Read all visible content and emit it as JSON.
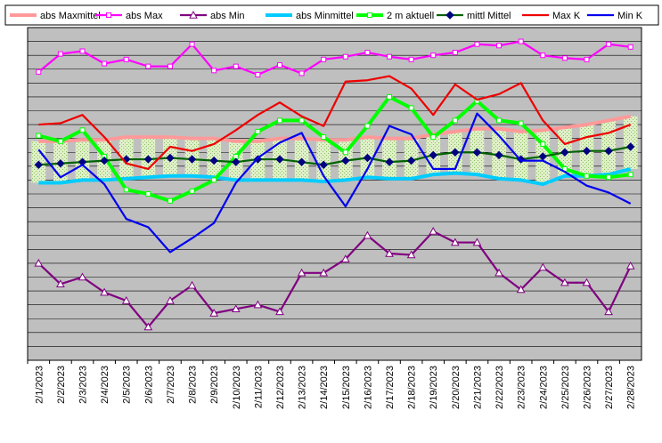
{
  "chart_data": {
    "type": "line",
    "title": "",
    "xlabel": "",
    "ylabel": "",
    "grid": true,
    "legend_position": "top",
    "x": [
      "2/1/2023",
      "2/2/2023",
      "2/3/2023",
      "2/4/2023",
      "2/5/2023",
      "2/6/2023",
      "2/7/2023",
      "2/8/2023",
      "2/9/2023",
      "2/10/2023",
      "2/11/2023",
      "2/12/2023",
      "2/13/2023",
      "2/14/2023",
      "2/15/2023",
      "2/16/2023",
      "2/17/2023",
      "2/18/2023",
      "2/19/2023",
      "2/20/2023",
      "2/21/2023",
      "2/22/2023",
      "2/23/2023",
      "2/24/2023",
      "2/25/2023",
      "2/26/2023",
      "2/27/2023",
      "2/28/2023"
    ],
    "ylim": [
      0,
      24
    ],
    "series": [
      {
        "name": "abs Maxmittel",
        "color": "#ff9999",
        "style": "thick-line",
        "values": [
          15.8,
          15.8,
          15.9,
          15.9,
          16.1,
          16.1,
          16.1,
          16.0,
          16.0,
          15.8,
          15.8,
          16.0,
          16.0,
          15.9,
          15.9,
          16.1,
          16.0,
          16.0,
          16.3,
          16.5,
          16.7,
          16.7,
          16.5,
          16.6,
          16.8,
          17.0,
          17.3,
          17.6
        ]
      },
      {
        "name": "abs Max",
        "color": "#ff00ff",
        "style": "line-square",
        "values": [
          20.8,
          22.1,
          22.3,
          21.4,
          21.7,
          21.2,
          21.2,
          22.8,
          20.9,
          21.2,
          20.6,
          21.3,
          20.7,
          21.7,
          21.9,
          22.2,
          21.9,
          21.7,
          22.0,
          22.2,
          22.8,
          22.7,
          23.0,
          22.0,
          21.8,
          21.7,
          22.8,
          22.6
        ]
      },
      {
        "name": "abs Min",
        "color": "#800080",
        "style": "line-triangle",
        "values": [
          7.0,
          5.5,
          6.0,
          4.9,
          4.3,
          2.4,
          4.3,
          5.4,
          3.4,
          3.7,
          4.0,
          3.5,
          6.3,
          6.3,
          7.3,
          9.0,
          7.7,
          7.6,
          9.3,
          8.5,
          8.5,
          6.3,
          5.1,
          6.7,
          5.6,
          5.6,
          3.5,
          6.8
        ]
      },
      {
        "name": "abs Minmittel",
        "color": "#00ccff",
        "style": "thick-line",
        "values": [
          12.8,
          12.8,
          13.0,
          13.0,
          13.1,
          13.2,
          13.3,
          13.3,
          13.2,
          13.0,
          13.0,
          13.0,
          13.0,
          12.9,
          13.0,
          13.2,
          13.1,
          13.1,
          13.4,
          13.5,
          13.4,
          13.1,
          13.0,
          12.7,
          13.3,
          13.3,
          13.4,
          13.8
        ]
      },
      {
        "name": "2 m aktuell",
        "color": "#00ff00",
        "style": "thick-line-square",
        "values": [
          16.2,
          15.8,
          16.6,
          14.7,
          12.3,
          12.0,
          11.5,
          12.2,
          13.0,
          14.7,
          16.5,
          17.3,
          17.3,
          16.1,
          15.0,
          16.9,
          19.0,
          18.2,
          16.1,
          17.3,
          18.7,
          17.3,
          17.1,
          15.6,
          13.8,
          13.3,
          13.2,
          13.4
        ]
      },
      {
        "name": "mittl Mittel",
        "color": "#006400",
        "style": "line-diamond",
        "values": [
          14.1,
          14.2,
          14.3,
          14.4,
          14.5,
          14.5,
          14.6,
          14.5,
          14.4,
          14.3,
          14.5,
          14.5,
          14.3,
          14.1,
          14.4,
          14.6,
          14.3,
          14.4,
          14.8,
          15.0,
          15.0,
          14.8,
          14.5,
          14.7,
          15.0,
          15.1,
          15.1,
          15.4
        ]
      },
      {
        "name": "Max K",
        "color": "#ee0000",
        "style": "line",
        "values": [
          17.0,
          17.1,
          17.7,
          16.1,
          14.2,
          13.8,
          15.4,
          15.1,
          15.6,
          16.6,
          17.7,
          18.6,
          17.6,
          16.9,
          20.1,
          20.2,
          20.5,
          19.6,
          17.7,
          19.9,
          18.8,
          19.2,
          20.0,
          17.3,
          15.6,
          16.1,
          16.4,
          17.0
        ]
      },
      {
        "name": "Min K",
        "color": "#0000ee",
        "style": "line",
        "values": [
          15.2,
          13.2,
          14.1,
          12.7,
          10.2,
          9.6,
          7.8,
          8.8,
          9.9,
          12.8,
          14.6,
          15.7,
          16.4,
          13.3,
          11.1,
          13.8,
          16.9,
          16.3,
          13.8,
          13.8,
          17.8,
          16.2,
          14.4,
          14.4,
          13.6,
          12.6,
          12.1,
          11.3
        ]
      }
    ]
  }
}
